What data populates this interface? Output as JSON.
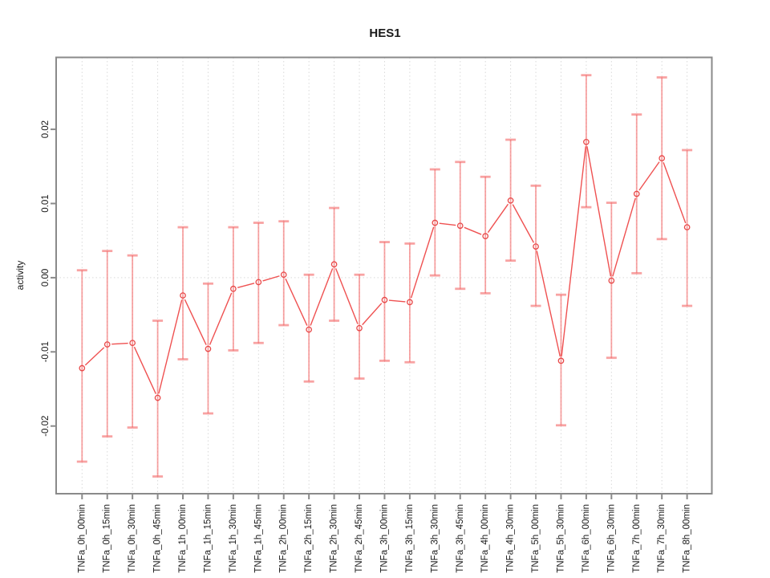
{
  "title": "HES1",
  "chart_data": {
    "type": "line",
    "title": "HES1",
    "xlabel": "",
    "ylabel": "activity",
    "legend_position": "none",
    "grid": "dotted vertical gridline at each category; dotted horizontal line at 0",
    "marker": "open-circle",
    "error_bars": true,
    "ylim": [
      -0.0295,
      0.0295
    ],
    "yticks": [
      -0.02,
      -0.01,
      0,
      0.01,
      0.02
    ],
    "ytick_labels": [
      "-0.02",
      "-0.01",
      "0.00",
      "0.01",
      "0.02"
    ],
    "x_tick_label_rotation_deg": 90,
    "categories": [
      "TNFa_0h_00min",
      "TNFa_0h_15min",
      "TNFa_0h_30min",
      "TNFa_0h_45min",
      "TNFa_1h_00min",
      "TNFa_1h_15min",
      "TNFa_1h_30min",
      "TNFa_1h_45min",
      "TNFa_2h_00min",
      "TNFa_2h_15min",
      "TNFa_2h_30min",
      "TNFa_2h_45min",
      "TNFa_3h_00min",
      "TNFa_3h_15min",
      "TNFa_3h_30min",
      "TNFa_3h_45min",
      "TNFa_4h_00min",
      "TNFa_4h_30min",
      "TNFa_5h_00min",
      "TNFa_5h_30min",
      "TNFa_6h_00min",
      "TNFa_6h_30min",
      "TNFa_7h_00min",
      "TNFa_7h_30min",
      "TNFa_8h_00min"
    ],
    "series": [
      {
        "name": "HES1 activity",
        "values": [
          -0.0122,
          -0.009,
          -0.0088,
          -0.0162,
          -0.0024,
          -0.0096,
          -0.0015,
          -0.0006,
          0.0004,
          -0.007,
          0.0018,
          -0.0068,
          -0.003,
          -0.0033,
          0.0074,
          0.007,
          0.0056,
          0.0104,
          0.0042,
          -0.0112,
          0.0183,
          -0.0004,
          0.0113,
          0.0161,
          0.0068
        ],
        "error_low": [
          -0.0248,
          -0.0214,
          -0.0202,
          -0.0268,
          -0.011,
          -0.0183,
          -0.0098,
          -0.0088,
          -0.0064,
          -0.014,
          -0.0058,
          -0.0136,
          -0.0112,
          -0.0114,
          0.0003,
          -0.0015,
          -0.0021,
          0.0023,
          -0.0038,
          -0.0199,
          0.0095,
          -0.0108,
          0.0006,
          0.0052,
          -0.0038
        ],
        "error_high": [
          0.001,
          0.0036,
          0.003,
          -0.0058,
          0.0068,
          -0.0008,
          0.0068,
          0.0074,
          0.0076,
          0.0004,
          0.0094,
          0.0004,
          0.0048,
          0.0046,
          0.0146,
          0.0156,
          0.0136,
          0.0186,
          0.0124,
          -0.0023,
          0.0273,
          0.0101,
          0.022,
          0.027,
          0.0172
        ]
      }
    ],
    "colors": {
      "series_line": "#ef5151",
      "marker_stroke": "#e84848",
      "error_bar": "#f36a6a",
      "gridline": "#d9d9d9",
      "frame": "#8a8a8a",
      "text": "#1a1a1a",
      "background": "#ffffff"
    }
  }
}
